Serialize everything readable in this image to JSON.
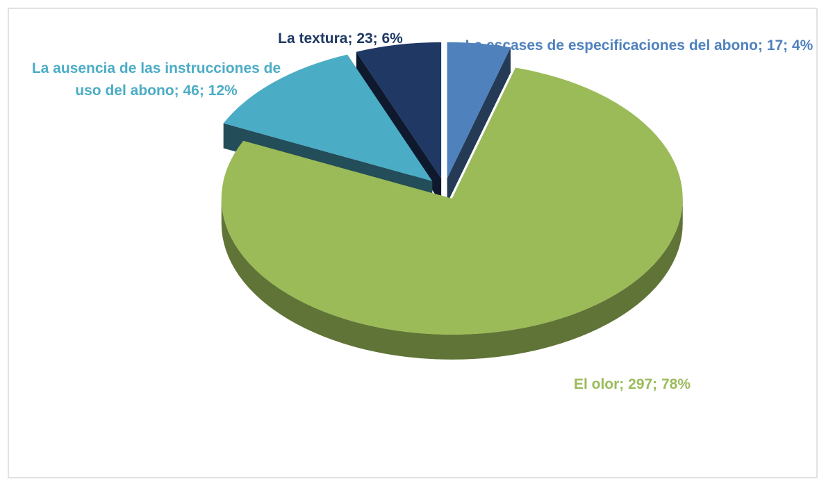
{
  "chart_data": {
    "type": "pie",
    "value_labels": [
      "La escases de especificaciones del abono; 17; 4%",
      "El olor; 297; 78%",
      "La ausencia de las instrucciones de uso del abono; 46; 12%",
      "La textura; 23; 6%"
    ],
    "values": [
      17,
      297,
      46,
      23
    ],
    "colors": [
      "#4f81bd",
      "#9bbb59",
      "#4bacc6",
      "#1f3864"
    ]
  }
}
